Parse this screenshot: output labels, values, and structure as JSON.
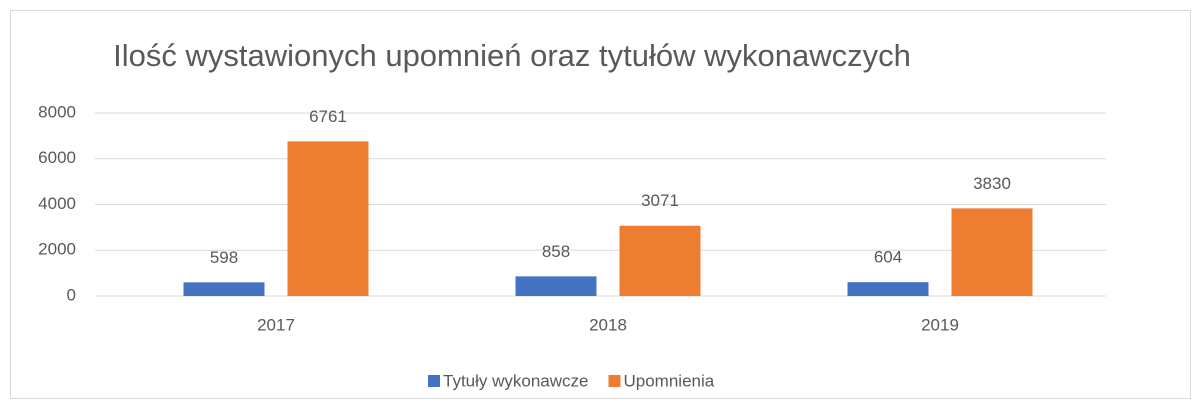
{
  "chart_data": {
    "type": "bar",
    "title": "Ilość wystawionych upomnień oraz tytułów wykonawczych",
    "categories": [
      "2017",
      "2018",
      "2019"
    ],
    "series": [
      {
        "name": "Tytuły wykonawcze",
        "color": "#4472c4",
        "values": [
          598,
          858,
          604
        ]
      },
      {
        "name": "Upomnienia",
        "color": "#ed7d31",
        "values": [
          6761,
          3071,
          3830
        ]
      }
    ],
    "ylim": [
      0,
      8000
    ],
    "yticks": [
      0,
      2000,
      4000,
      6000,
      8000
    ],
    "grid": true,
    "legend": "bottom",
    "data_labels": true
  }
}
